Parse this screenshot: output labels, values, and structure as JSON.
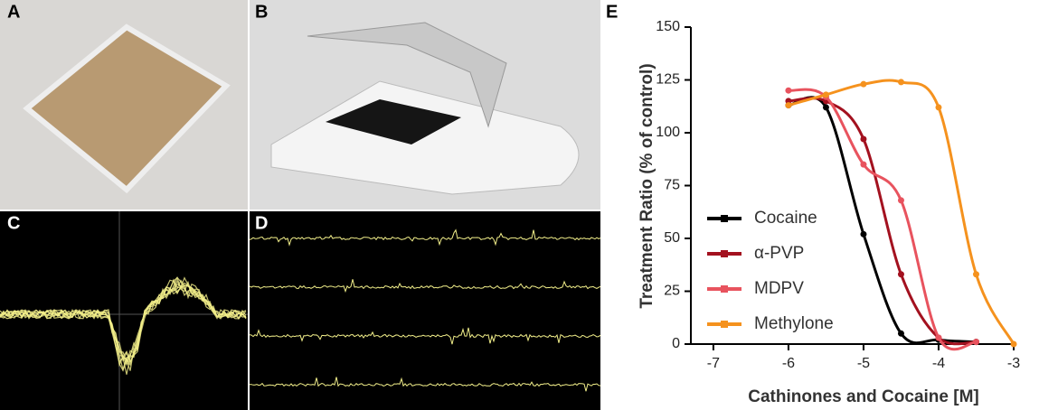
{
  "panel_labels": [
    "A",
    "B",
    "C",
    "D",
    "E"
  ],
  "chart_data": {
    "type": "line",
    "xlabel": "Cathinones and Cocaine [M]",
    "ylabel": "Treatment Ratio (% of control)",
    "xlim": [
      -7.3,
      -3
    ],
    "xticks": [
      -7,
      -6,
      -5,
      -4,
      -3
    ],
    "ylim": [
      0,
      150
    ],
    "yticks": [
      0,
      25,
      50,
      75,
      100,
      125,
      150
    ],
    "legend": "lower-left",
    "series": [
      {
        "name": "Cocaine",
        "color": "#000000",
        "x": [
          -6,
          -5.5,
          -5,
          -4.5,
          -4,
          -3.5
        ],
        "values": [
          113,
          112,
          52,
          5,
          2,
          1
        ]
      },
      {
        "name": "α-PVP",
        "color": "#a3111f",
        "x": [
          -6,
          -5.5,
          -5,
          -4.5,
          -4,
          -3.5
        ],
        "values": [
          115,
          115,
          97,
          33,
          3,
          1
        ]
      },
      {
        "name": "MDPV",
        "color": "#e8535e",
        "x": [
          -6,
          -5.5,
          -5,
          -4.5,
          -4,
          -3.5
        ],
        "values": [
          120,
          117,
          85,
          68,
          3,
          1
        ]
      },
      {
        "name": "Methylone",
        "color": "#f5921e",
        "x": [
          -6,
          -5.5,
          -5,
          -4.5,
          -4,
          -3.5,
          -3
        ],
        "values": [
          113,
          118,
          123,
          124,
          112,
          33,
          0
        ]
      }
    ]
  }
}
